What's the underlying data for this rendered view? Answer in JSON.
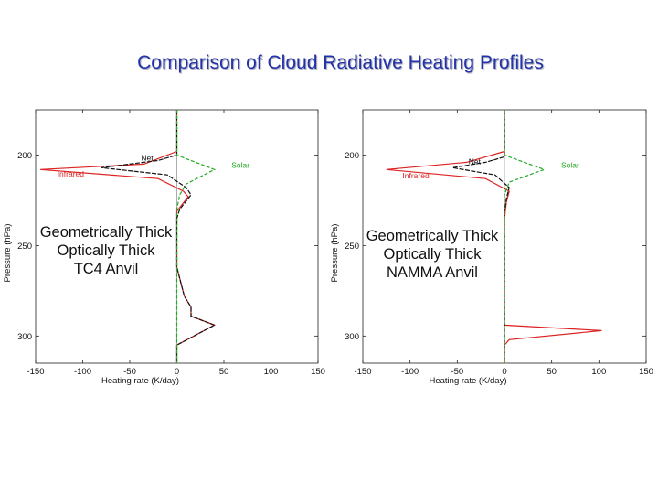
{
  "slide": {
    "title": "Comparison of Cloud Radiative Heating Profiles"
  },
  "colors": {
    "infrared": "#dd2222",
    "net": "#111111",
    "solar": "#22aa22",
    "title": "#2233aa"
  },
  "chart_data": [
    {
      "type": "line",
      "xlabel": "Heating rate (K/day)",
      "ylabel": "Pressure (hPa)",
      "xlim": [
        -150,
        150
      ],
      "ylim": [
        315,
        175
      ],
      "xticks": [
        -150,
        -100,
        -50,
        0,
        50,
        100,
        150
      ],
      "yticks": [
        200,
        250,
        300
      ],
      "annotation": [
        "Geometrically Thick",
        "Optically Thick",
        "TC4 Anvil"
      ],
      "series": [
        {
          "name": "Infrared",
          "color": "#dd2222",
          "points": [
            [
              0,
              175
            ],
            [
              0,
              198
            ],
            [
              -35,
              205
            ],
            [
              -145,
              208
            ],
            [
              -20,
              213
            ],
            [
              7,
              220
            ],
            [
              12,
              223
            ],
            [
              0,
              231
            ],
            [
              0,
              262
            ],
            [
              8,
              278
            ],
            [
              15,
              284
            ],
            [
              15,
              289
            ],
            [
              40,
              294
            ],
            [
              0,
              305
            ],
            [
              0,
              315
            ]
          ]
        },
        {
          "name": "Net",
          "color": "#111111",
          "points": [
            [
              0,
              175
            ],
            [
              0,
              200
            ],
            [
              -20,
              203
            ],
            [
              -80,
              207
            ],
            [
              -10,
              211
            ],
            [
              10,
              218
            ],
            [
              15,
              222
            ],
            [
              3,
              230
            ],
            [
              0,
              235
            ],
            [
              0,
              262
            ],
            [
              8,
              278
            ],
            [
              15,
              284
            ],
            [
              15,
              289
            ],
            [
              40,
              294
            ],
            [
              0,
              305
            ],
            [
              0,
              315
            ]
          ]
        },
        {
          "name": "Solar",
          "color": "#22aa22",
          "points": [
            [
              0,
              175
            ],
            [
              0,
              200
            ],
            [
              40,
              208
            ],
            [
              10,
              216
            ],
            [
              3,
              222
            ],
            [
              0,
              230
            ],
            [
              0,
              315
            ]
          ]
        }
      ],
      "legend_labels": [
        {
          "series": "Net",
          "text": "Net"
        },
        {
          "series": "Solar",
          "text": "Solar"
        },
        {
          "series": "Infrared",
          "text": "Infrared"
        }
      ]
    },
    {
      "type": "line",
      "xlabel": "Heating rate (K/day)",
      "ylabel": "Pressure (hPa)",
      "xlim": [
        -150,
        150
      ],
      "ylim": [
        315,
        175
      ],
      "xticks": [
        -150,
        -100,
        -50,
        0,
        50,
        100,
        150
      ],
      "yticks": [
        200,
        250,
        300
      ],
      "annotation": [
        "Geometrically Thick",
        "Optically Thick",
        "NAMMA Anvil"
      ],
      "series": [
        {
          "name": "Infrared",
          "color": "#dd2222",
          "points": [
            [
              0,
              175
            ],
            [
              0,
              198
            ],
            [
              -40,
              204
            ],
            [
              -125,
              208
            ],
            [
              -20,
              213
            ],
            [
              5,
              220
            ],
            [
              2,
              226
            ],
            [
              0,
              235
            ],
            [
              0,
              294
            ],
            [
              103,
              297
            ],
            [
              5,
              302
            ],
            [
              0,
              305
            ],
            [
              0,
              315
            ]
          ]
        },
        {
          "name": "Net",
          "color": "#111111",
          "points": [
            [
              0,
              175
            ],
            [
              0,
              201
            ],
            [
              -20,
              204
            ],
            [
              -55,
              207
            ],
            [
              -10,
              211
            ],
            [
              5,
              218
            ],
            [
              2,
              224
            ],
            [
              0,
              232
            ],
            [
              0,
              315
            ]
          ]
        },
        {
          "name": "Solar",
          "color": "#22aa22",
          "points": [
            [
              0,
              175
            ],
            [
              0,
              200
            ],
            [
              42,
              208
            ],
            [
              5,
              215
            ],
            [
              0,
              222
            ],
            [
              0,
              315
            ]
          ]
        }
      ],
      "legend_labels": [
        {
          "series": "Net",
          "text": "Net"
        },
        {
          "series": "Solar",
          "text": "Solar"
        },
        {
          "series": "Infrared",
          "text": "Infrared"
        }
      ]
    }
  ]
}
